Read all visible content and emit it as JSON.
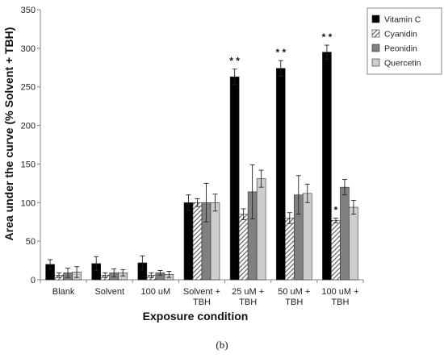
{
  "caption": "(b)",
  "chart_data": {
    "type": "bar",
    "title": "",
    "xlabel": "Exposure condition",
    "ylabel": "Area under the curve (%  Solvent + TBH)",
    "ylim": [
      0,
      350
    ],
    "yticks": [
      0,
      50,
      100,
      150,
      200,
      250,
      300,
      350
    ],
    "grid": false,
    "legend_position": "top-right",
    "categories": [
      [
        "Blank"
      ],
      [
        "Solvent"
      ],
      [
        "100 uM"
      ],
      [
        "Solvent +",
        "TBH"
      ],
      [
        "25 uM +",
        "TBH"
      ],
      [
        "50 uM +",
        "TBH"
      ],
      [
        "100 uM +",
        "TBH"
      ]
    ],
    "series": [
      {
        "name": "Vitamin C",
        "fill": "black",
        "color": "#000000",
        "values": [
          20,
          21,
          22,
          100,
          263,
          274,
          295
        ],
        "errors": [
          6,
          9,
          9,
          10,
          10,
          10,
          9
        ]
      },
      {
        "name": "Cyanidin",
        "fill": "hatched",
        "color": "#777777",
        "values": [
          6,
          6,
          6,
          100,
          85,
          80,
          77
        ],
        "errors": [
          3,
          3,
          3,
          5,
          7,
          7,
          3
        ]
      },
      {
        "name": "Peonidin",
        "fill": "gray",
        "color": "#808080",
        "values": [
          9,
          9,
          9,
          100,
          114,
          110,
          120
        ],
        "errors": [
          6,
          5,
          3,
          25,
          35,
          25,
          10
        ]
      },
      {
        "name": "Quercetin",
        "fill": "light",
        "color": "#cdcdcd",
        "values": [
          10,
          9,
          7,
          100,
          131,
          112,
          94
        ],
        "errors": [
          7,
          4,
          4,
          11,
          11,
          12,
          9
        ]
      }
    ],
    "annotations": [
      {
        "text": "* *",
        "category": 4,
        "series": 0
      },
      {
        "text": "* *",
        "category": 5,
        "series": 0
      },
      {
        "text": "* *",
        "category": 6,
        "series": 0
      },
      {
        "text": "*",
        "category": 6,
        "series": 1
      }
    ]
  }
}
